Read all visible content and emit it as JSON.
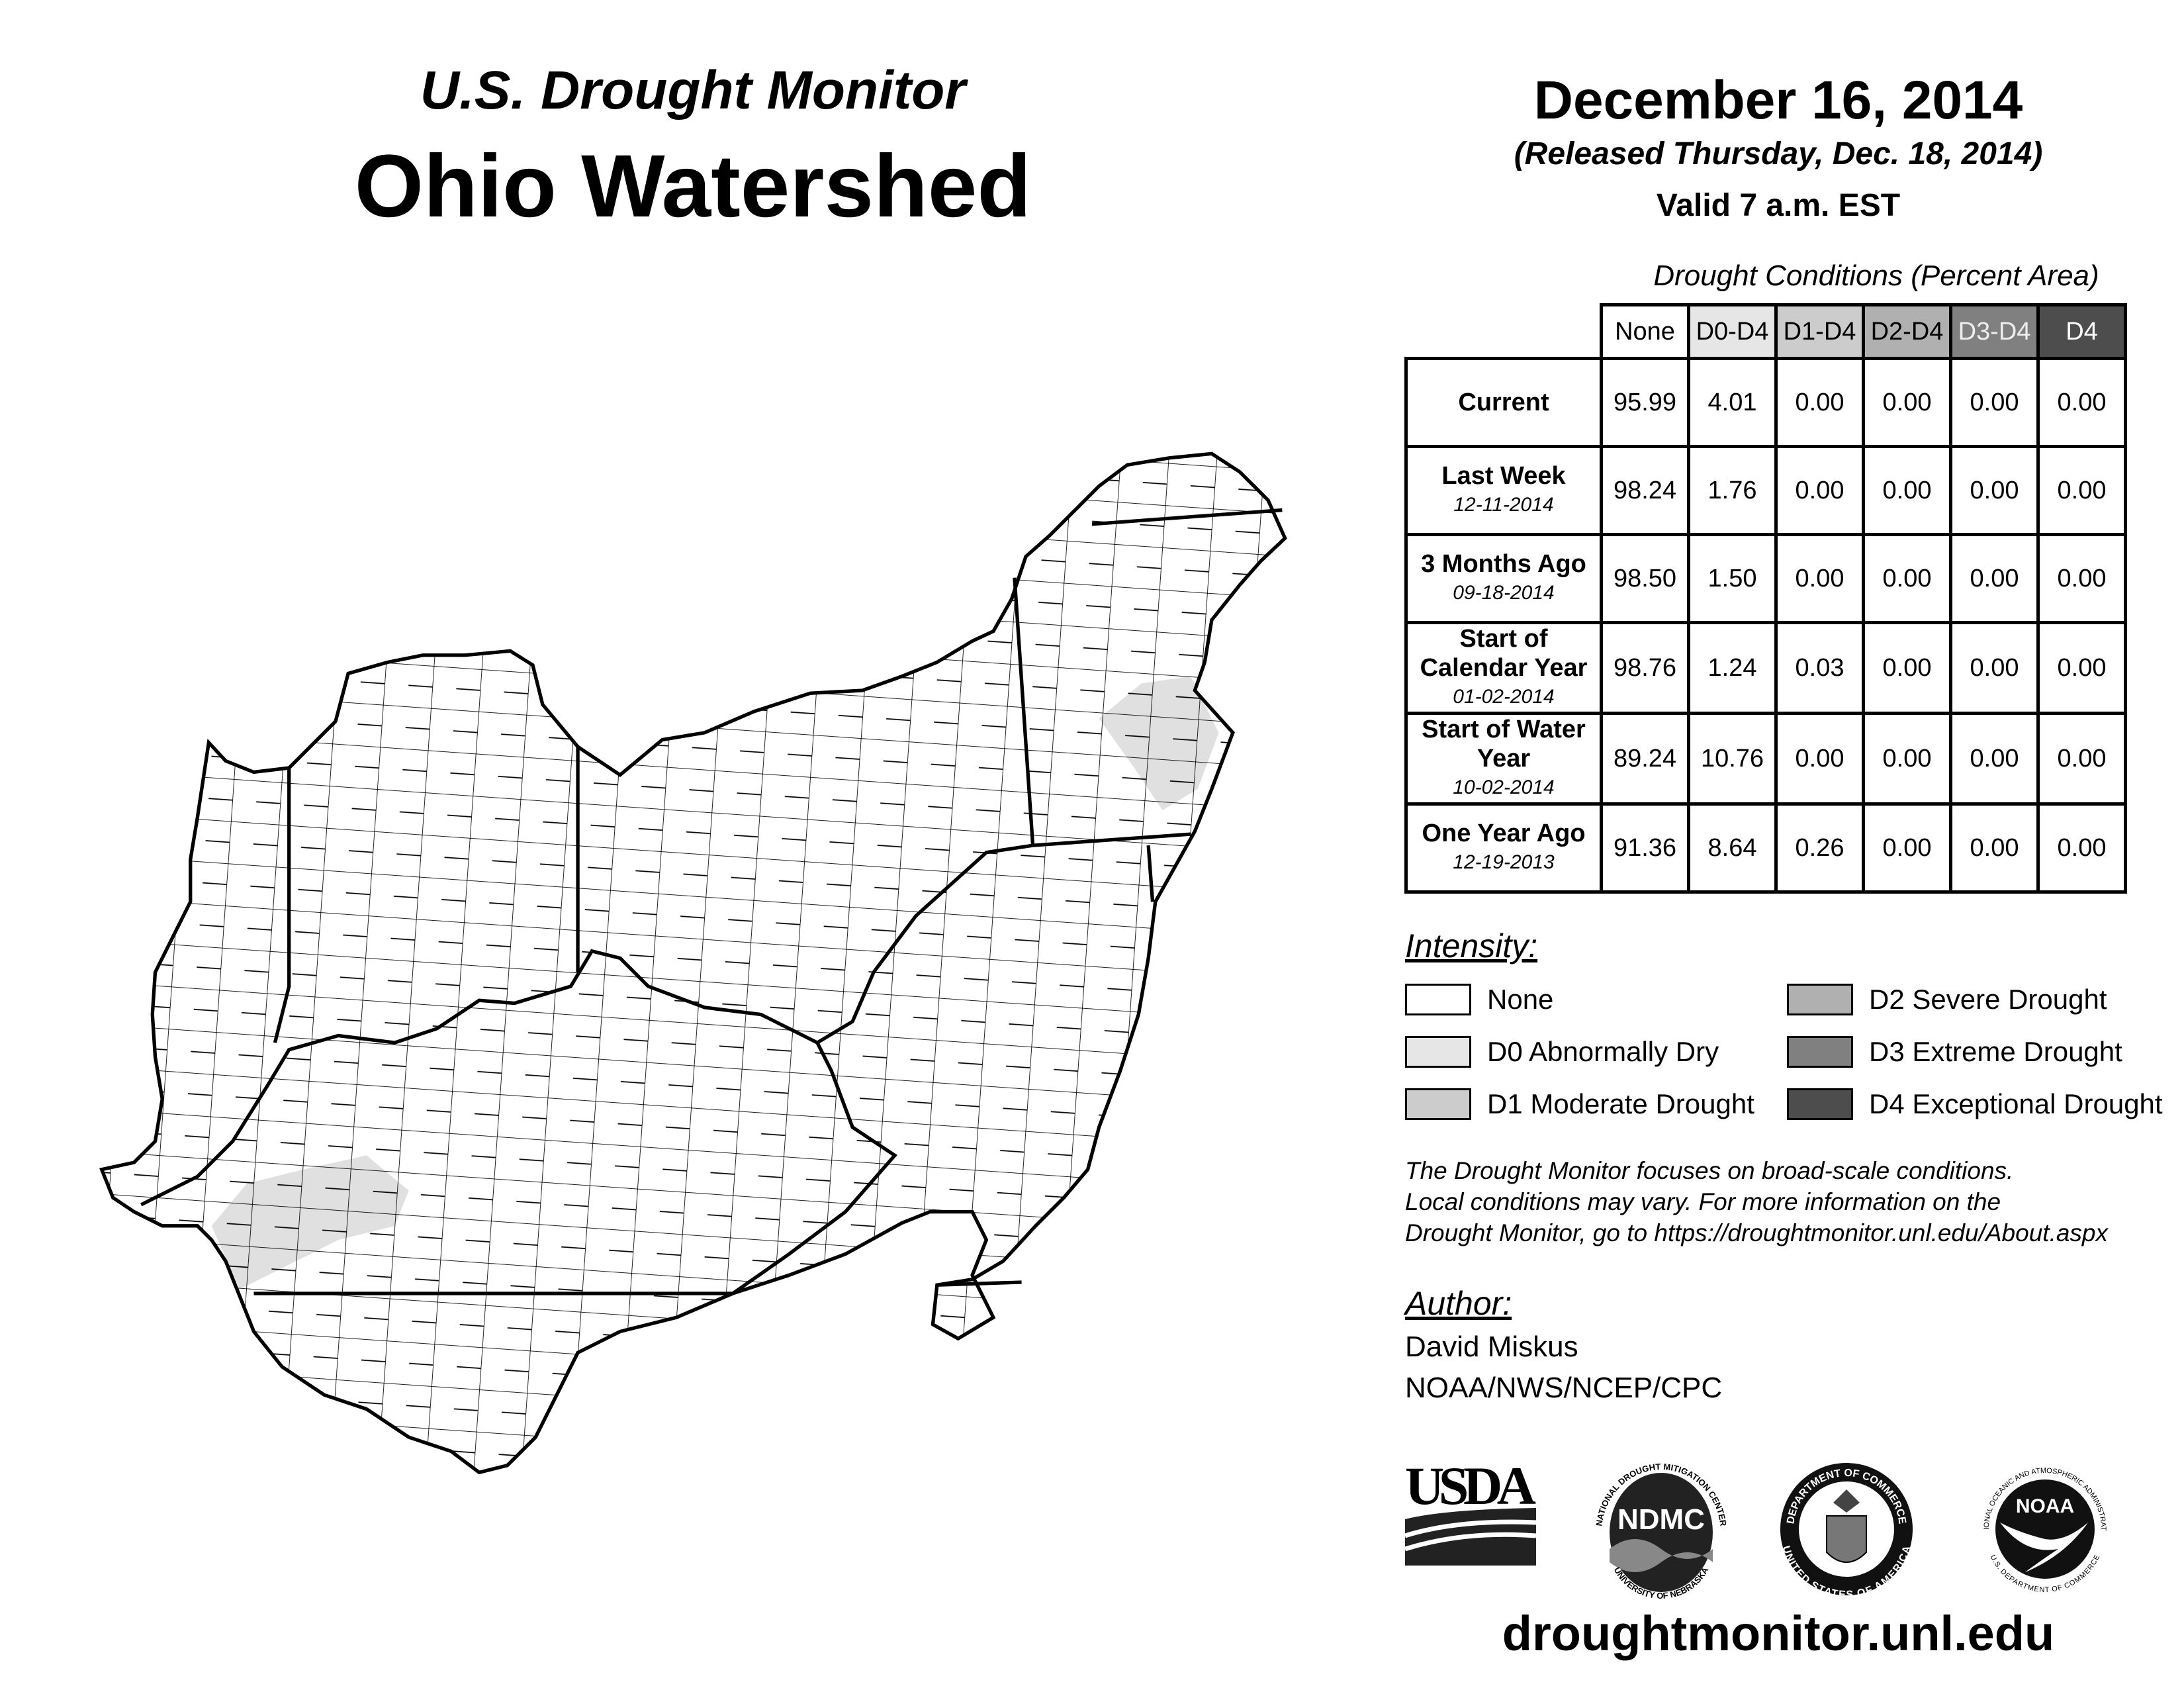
{
  "header": {
    "subtitle": "U.S. Drought Monitor",
    "title": "Ohio Watershed",
    "date": "December 16, 2014",
    "released": "(Released Thursday, Dec. 18, 2014)",
    "valid": "Valid 7 a.m. EST"
  },
  "table": {
    "caption": "Drought Conditions (Percent Area)",
    "columns": [
      "None",
      "D0-D4",
      "D1-D4",
      "D2-D4",
      "D3-D4",
      "D4"
    ],
    "rows": [
      {
        "label": "Current",
        "date": "",
        "values": [
          "95.99",
          "4.01",
          "0.00",
          "0.00",
          "0.00",
          "0.00"
        ]
      },
      {
        "label": "Last Week",
        "date": "12-11-2014",
        "values": [
          "98.24",
          "1.76",
          "0.00",
          "0.00",
          "0.00",
          "0.00"
        ]
      },
      {
        "label": "3 Months Ago",
        "date": "09-18-2014",
        "values": [
          "98.50",
          "1.50",
          "0.00",
          "0.00",
          "0.00",
          "0.00"
        ]
      },
      {
        "label": "Start of Calendar Year",
        "date": "01-02-2014",
        "values": [
          "98.76",
          "1.24",
          "0.03",
          "0.00",
          "0.00",
          "0.00"
        ]
      },
      {
        "label": "Start of Water Year",
        "date": "10-02-2014",
        "values": [
          "89.24",
          "10.76",
          "0.00",
          "0.00",
          "0.00",
          "0.00"
        ]
      },
      {
        "label": "One Year Ago",
        "date": "12-19-2013",
        "values": [
          "91.36",
          "8.64",
          "0.26",
          "0.00",
          "0.00",
          "0.00"
        ]
      }
    ]
  },
  "legend": {
    "title": "Intensity:",
    "items": [
      {
        "label": "None",
        "color": "#ffffff"
      },
      {
        "label": "D0 Abnormally Dry",
        "color": "#e6e6e6"
      },
      {
        "label": "D1 Moderate Drought",
        "color": "#cccccc"
      },
      {
        "label": "D2 Severe Drought",
        "color": "#b0b0b0"
      },
      {
        "label": "D3 Extreme Drought",
        "color": "#808080"
      },
      {
        "label": "D4 Exceptional Drought",
        "color": "#4d4d4d"
      }
    ]
  },
  "note": [
    "The Drought Monitor focuses on broad-scale conditions.",
    "Local conditions may vary. For more information on the",
    "Drought Monitor, go to https://droughtmonitor.unl.edu/About.aspx"
  ],
  "author": {
    "heading": "Author:",
    "name": "David Miskus",
    "org": "NOAA/NWS/NCEP/CPC"
  },
  "logos": {
    "usda": "USDA",
    "ndmc": "NDMC",
    "ndmc_ring_top": "NATIONAL DROUGHT MITIGATION CENTER",
    "ndmc_ring_bottom": "UNIVERSITY OF NEBRASKA",
    "doc_ring_top": "DEPARTMENT OF COMMERCE",
    "doc_ring_bottom": "UNITED STATES OF AMERICA",
    "noaa": "NOAA",
    "noaa_ring_top": "NATIONAL OCEANIC AND ATMOSPHERIC ADMINISTRATION",
    "noaa_ring_bottom": "U.S. DEPARTMENT OF COMMERCE"
  },
  "footer": {
    "url": "droughtmonitor.unl.edu"
  }
}
